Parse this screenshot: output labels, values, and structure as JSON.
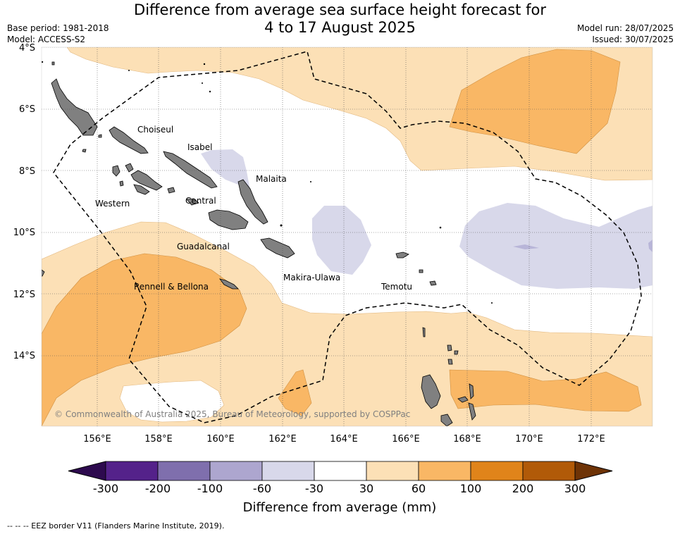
{
  "header": {
    "title_line1": "Difference from average sea surface height forecast for",
    "title_line2": "4 to 17 August 2025",
    "base_period": "Base period: 1981-2018",
    "model": "Model: ACCESS-S2",
    "model_run": "Model run: 28/07/2025",
    "issued": "Issued: 30/07/2025"
  },
  "map": {
    "lat_labels": [
      "4°S",
      "6°S",
      "8°S",
      "10°S",
      "12°S",
      "14°S"
    ],
    "lon_labels": [
      "156°E",
      "158°E",
      "160°E",
      "162°E",
      "164°E",
      "166°E",
      "168°E",
      "170°E",
      "172°E"
    ],
    "land_color": "#808080",
    "province_labels": [
      "Choiseul",
      "Isabel",
      "Malaita",
      "Western",
      "Central",
      "Guadalcanal",
      "Makira-Ulawa",
      "Rennell & Bellona",
      "Temotu"
    ],
    "copyright": "© Commonwealth of Australia 2025, Bureau of Meteorology, supported by COSPPac"
  },
  "colorbar": {
    "ticks": [
      "-300",
      "-200",
      "-100",
      "-60",
      "-30",
      "30",
      "60",
      "100",
      "200",
      "300"
    ],
    "colors": [
      "#2d0a4e",
      "#54228a",
      "#7f6fad",
      "#ada6cf",
      "#d8d8ea",
      "#ffffff",
      "#fce0b6",
      "#f9b765",
      "#e0841a",
      "#b15a08",
      "#6e3306"
    ],
    "label": "Difference from average (mm)"
  },
  "legend": {
    "eez": "--  --  -- EEZ border V11 (Flanders Marine Institute, 2019)."
  }
}
